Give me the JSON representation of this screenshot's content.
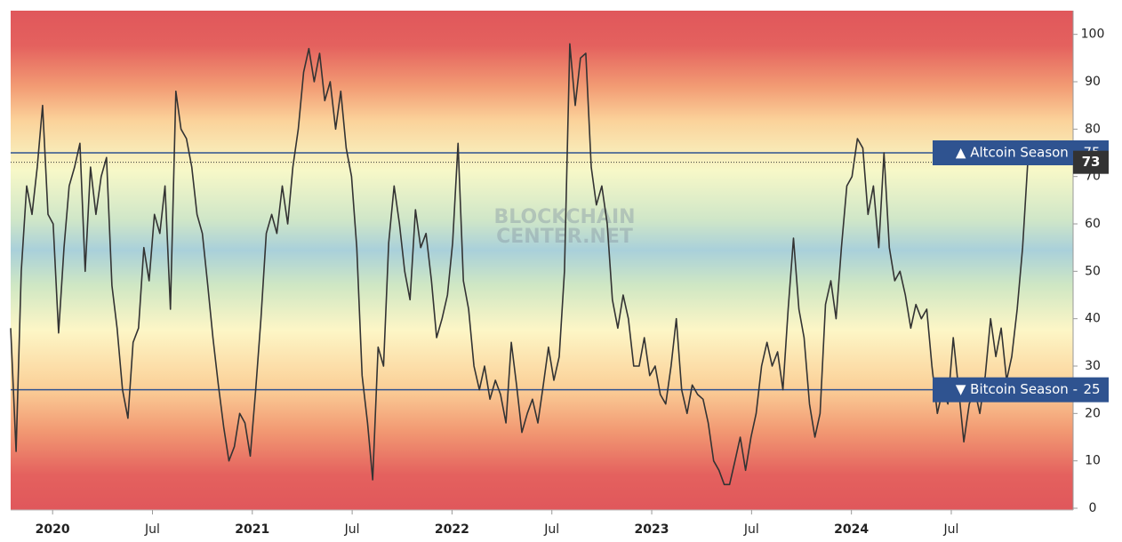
{
  "chart_data": {
    "type": "line",
    "watermark": [
      "BLOCKCHAIN",
      "CENTER.NET"
    ],
    "x": [
      2019.79,
      2019.817,
      2019.843,
      2019.87,
      2019.897,
      2019.923,
      2019.95,
      2019.977,
      2020.003,
      2020.03,
      2020.057,
      2020.083,
      2020.11,
      2020.137,
      2020.163,
      2020.19,
      2020.217,
      2020.243,
      2020.27,
      2020.297,
      2020.323,
      2020.35,
      2020.377,
      2020.403,
      2020.43,
      2020.457,
      2020.483,
      2020.51,
      2020.537,
      2020.563,
      2020.59,
      2020.617,
      2020.643,
      2020.67,
      2020.697,
      2020.723,
      2020.75,
      2020.777,
      2020.803,
      2020.83,
      2020.857,
      2020.883,
      2020.91,
      2020.937,
      2020.963,
      2020.99,
      2021.017,
      2021.043,
      2021.07,
      2021.097,
      2021.123,
      2021.15,
      2021.177,
      2021.203,
      2021.23,
      2021.257,
      2021.283,
      2021.31,
      2021.337,
      2021.363,
      2021.39,
      2021.417,
      2021.443,
      2021.47,
      2021.497,
      2021.523,
      2021.55,
      2021.577,
      2021.603,
      2021.63,
      2021.657,
      2021.683,
      2021.71,
      2021.737,
      2021.763,
      2021.79,
      2021.817,
      2021.843,
      2021.87,
      2021.897,
      2021.923,
      2021.95,
      2021.977,
      2022.003,
      2022.03,
      2022.057,
      2022.083,
      2022.11,
      2022.137,
      2022.163,
      2022.19,
      2022.217,
      2022.243,
      2022.27,
      2022.297,
      2022.323,
      2022.35,
      2022.377,
      2022.403,
      2022.43,
      2022.457,
      2022.483,
      2022.51,
      2022.537,
      2022.563,
      2022.59,
      2022.617,
      2022.643,
      2022.67,
      2022.697,
      2022.723,
      2022.75,
      2022.777,
      2022.803,
      2022.83,
      2022.857,
      2022.883,
      2022.91,
      2022.937,
      2022.963,
      2022.99,
      2023.017,
      2023.043,
      2023.07,
      2023.097,
      2023.123,
      2023.15,
      2023.177,
      2023.203,
      2023.23,
      2023.257,
      2023.283,
      2023.31,
      2023.337,
      2023.363,
      2023.39,
      2023.417,
      2023.443,
      2023.47,
      2023.497,
      2023.523,
      2023.55,
      2023.577,
      2023.603,
      2023.63,
      2023.657,
      2023.683,
      2023.71,
      2023.737,
      2023.763,
      2023.79,
      2023.817,
      2023.843,
      2023.87,
      2023.897,
      2023.923,
      2023.95,
      2023.977,
      2024.003,
      2024.03,
      2024.057,
      2024.083,
      2024.11,
      2024.137,
      2024.163,
      2024.19,
      2024.217,
      2024.243,
      2024.27,
      2024.297,
      2024.323,
      2024.35,
      2024.377,
      2024.403,
      2024.43,
      2024.457,
      2024.483,
      2024.51,
      2024.537,
      2024.563,
      2024.59,
      2024.617,
      2024.643,
      2024.67,
      2024.697,
      2024.723,
      2024.75,
      2024.777,
      2024.803,
      2024.83,
      2024.857,
      2024.883
    ],
    "values": [
      38,
      12,
      50,
      68,
      62,
      72,
      85,
      62,
      60,
      37,
      55,
      68,
      72,
      77,
      50,
      72,
      62,
      70,
      74,
      47,
      38,
      25,
      19,
      35,
      38,
      55,
      48,
      62,
      58,
      68,
      42,
      88,
      80,
      78,
      72,
      62,
      58,
      47,
      36,
      26,
      17,
      10,
      13,
      20,
      18,
      11,
      25,
      40,
      58,
      62,
      58,
      68,
      60,
      72,
      80,
      92,
      97,
      90,
      96,
      86,
      90,
      80,
      88,
      76,
      70,
      55,
      28,
      18,
      6,
      34,
      30,
      56,
      68,
      60,
      50,
      44,
      63,
      55,
      58,
      48,
      36,
      40,
      45,
      56,
      77,
      48,
      42,
      30,
      25,
      30,
      23,
      27,
      24,
      18,
      35,
      26,
      16,
      20,
      23,
      18,
      26,
      34,
      27,
      32,
      50,
      98,
      85,
      95,
      96,
      72,
      64,
      68,
      60,
      44,
      38,
      45,
      40,
      30,
      30,
      36,
      28,
      30,
      24,
      22,
      30,
      40,
      25,
      20,
      26,
      24,
      23,
      18,
      10,
      8,
      5,
      5,
      10,
      15,
      8,
      15,
      20,
      30,
      35,
      30,
      33,
      25,
      42,
      57,
      42,
      36,
      22,
      15,
      20,
      43,
      48,
      40,
      55,
      68,
      70,
      78,
      76,
      62,
      68,
      55,
      75,
      55,
      48,
      50,
      45,
      38,
      43,
      40,
      42,
      30,
      20,
      25,
      22,
      36,
      25,
      14,
      22,
      25,
      20,
      28,
      40,
      32,
      38,
      27,
      32,
      42,
      55,
      73
    ],
    "color": "#333333",
    "xlim": [
      2019.79,
      2025.11
    ],
    "xticks": [
      2020,
      {
        "value": 2020.5,
        "label": "Jul"
      },
      2021,
      {
        "value": 2021.5,
        "label": "Jul"
      },
      2022,
      {
        "value": 2022.5,
        "label": "Jul"
      },
      2023,
      {
        "value": 2023.5,
        "label": "Jul"
      },
      2024,
      {
        "value": 2024.5,
        "label": "Jul"
      }
    ],
    "ylim": [
      0,
      105
    ],
    "yticks": [
      0,
      10,
      20,
      30,
      40,
      50,
      60,
      70,
      80,
      90,
      100
    ],
    "reference_lines": [
      {
        "label": "▲ Altcoin Season -",
        "value": 75,
        "color": "#2f5390"
      },
      {
        "label": "▼ Bitcoin Season -",
        "value": 25,
        "color": "#2f5390"
      }
    ]
  }
}
